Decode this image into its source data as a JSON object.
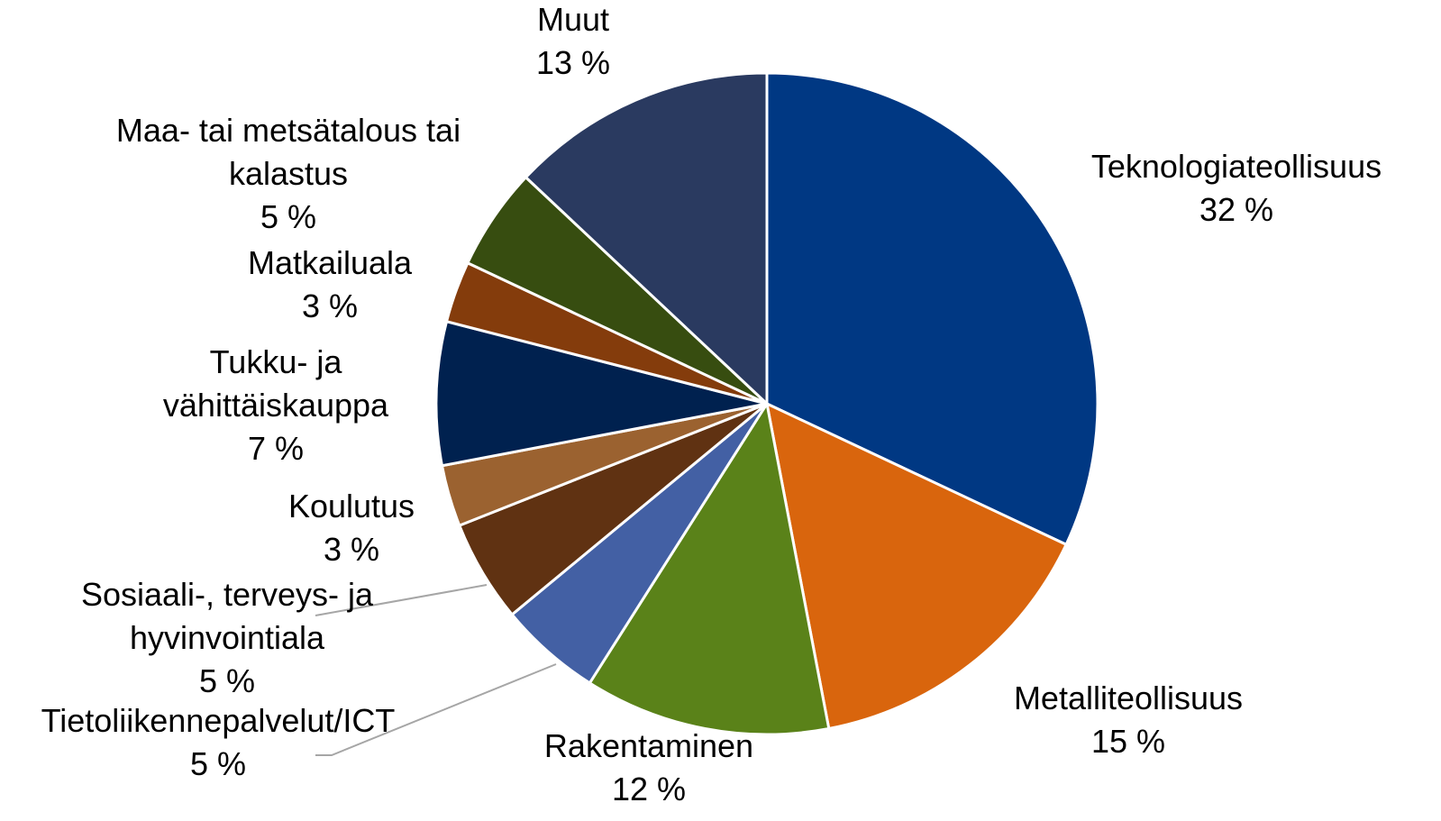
{
  "chart_data": {
    "type": "pie",
    "categories": [
      "Teknologiateollisuus",
      "Metalliteollisuus",
      "Rakentaminen",
      "Tietoliikennepalvelut/ICT",
      "Sosiaali-, terveys- ja hyvinvointiala",
      "Koulutus",
      "Tukku- ja vähittäiskauppa",
      "Matkailuala",
      "Maa- tai metsätalous tai kalastus",
      "Muut"
    ],
    "values": [
      32,
      15,
      12,
      5,
      5,
      3,
      7,
      3,
      5,
      13
    ],
    "value_labels": [
      "32 %",
      "15 %",
      "12 %",
      "5 %",
      "5 %",
      "3 %",
      "7 %",
      "3 %",
      "5 %",
      "13 %"
    ],
    "colors": [
      "#003883",
      "#d9650d",
      "#5a8219",
      "#4360a4",
      "#603212",
      "#9b6230",
      "#00214f",
      "#843c0c",
      "#374d10",
      "#2a3a60"
    ]
  }
}
